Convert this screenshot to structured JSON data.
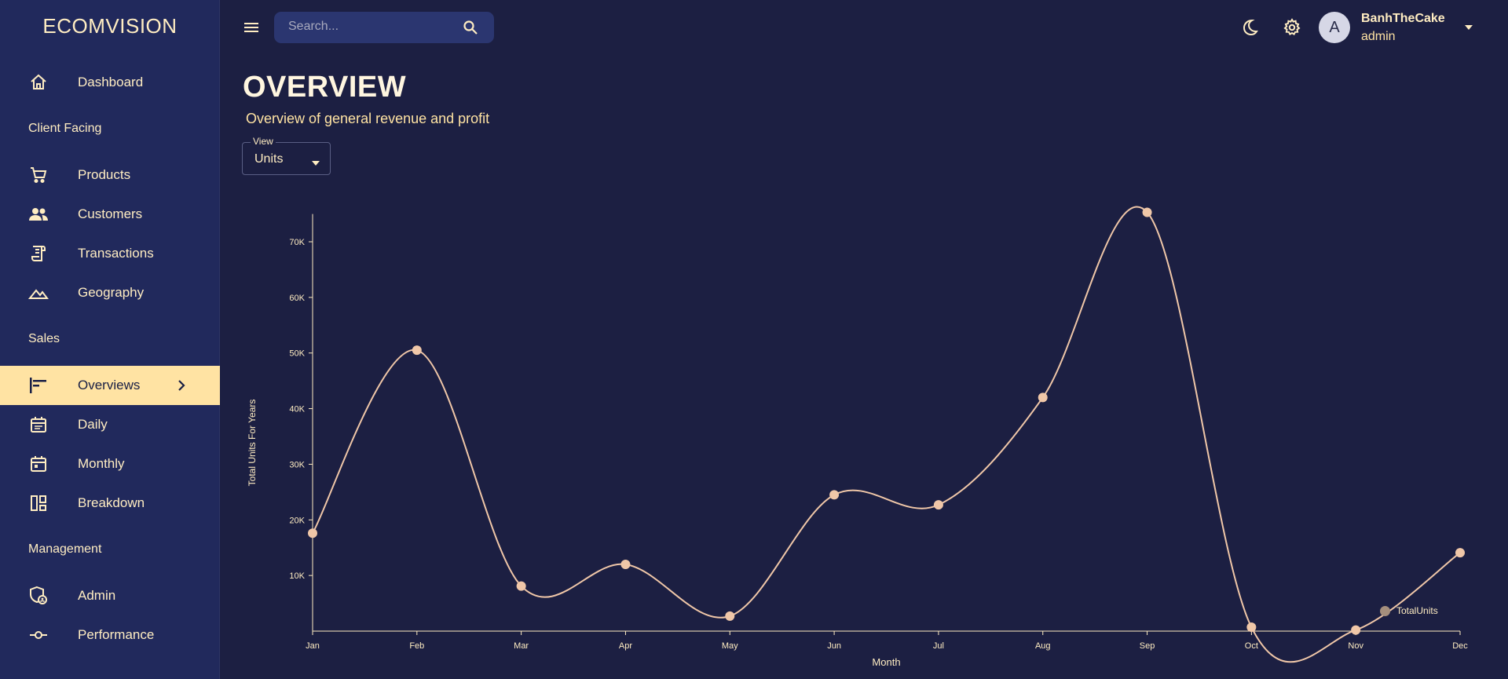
{
  "brand": "ECOMVISION",
  "search": {
    "placeholder": "Search..."
  },
  "user": {
    "avatar_letter": "A",
    "name": "BanhTheCake",
    "role": "admin"
  },
  "nav": {
    "dashboard": "Dashboard",
    "section_client": "Client Facing",
    "products": "Products",
    "customers": "Customers",
    "transactions": "Transactions",
    "geography": "Geography",
    "section_sales": "Sales",
    "overviews": "Overviews",
    "daily": "Daily",
    "monthly": "Monthly",
    "breakdown": "Breakdown",
    "section_management": "Management",
    "admin": "Admin",
    "performance": "Performance"
  },
  "header": {
    "title": "OVERVIEW",
    "subtitle": "Overview of general revenue and profit"
  },
  "view_select": {
    "legend": "View",
    "value": "Units"
  },
  "colors": {
    "bg": "#1c1f42",
    "sidebar": "#21295c",
    "accent": "#ffe3a3",
    "line": "#f0c7a8",
    "text": "#ffedc2"
  },
  "chart_data": {
    "type": "line",
    "xlabel": "Month",
    "ylabel": "Total Units For Years",
    "categories": [
      "Jan",
      "Feb",
      "Mar",
      "Apr",
      "May",
      "Jun",
      "Jul",
      "Aug",
      "Sep",
      "Oct",
      "Nov",
      "Dec"
    ],
    "yticks": [
      10000,
      20000,
      30000,
      40000,
      50000,
      60000,
      70000
    ],
    "ytick_labels": [
      "10K",
      "20K",
      "30K",
      "40K",
      "50K",
      "60K",
      "70K"
    ],
    "ylim": [
      0,
      75000
    ],
    "series": [
      {
        "name": "TotalUnits",
        "values": [
          17600,
          50500,
          8100,
          12000,
          2700,
          24500,
          22700,
          42000,
          75300,
          700,
          200,
          14100
        ]
      }
    ],
    "legend_position": "bottom-right",
    "grid": false,
    "curve": "smooth"
  }
}
